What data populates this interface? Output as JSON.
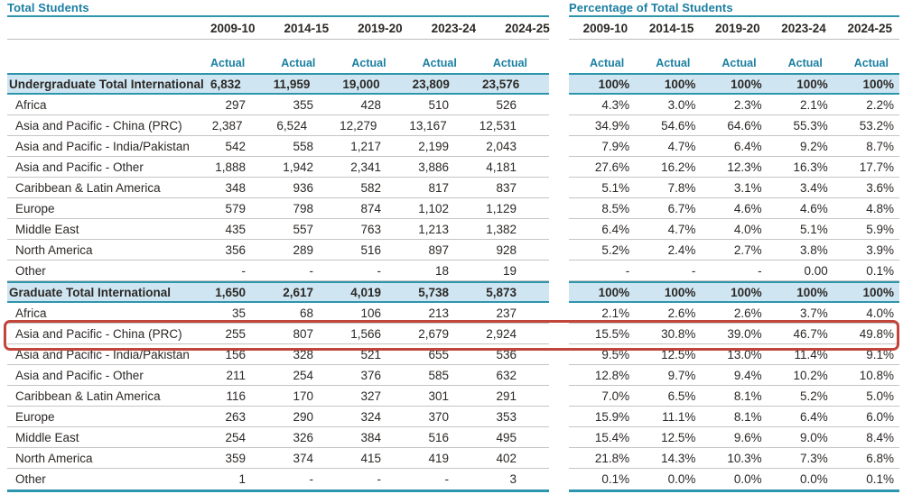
{
  "colors": {
    "accent_teal_text": "#1a7fa2",
    "accent_teal_line": "#2e96ac",
    "band_background": "#cfe6f2",
    "row_separator": "#c4c4c4",
    "highlight_red": "#c2453c"
  },
  "highlight": {
    "section_index": 1,
    "row_index": 1,
    "description": "Graduate Asia and Pacific - China (PRC) row outlined in red across both tables"
  },
  "left_table": {
    "title": "Total Students",
    "years": [
      "2009-10",
      "2014-15",
      "2019-20",
      "2023-24",
      "2024-25"
    ],
    "subheaders": [
      "Actual",
      "Actual",
      "Actual",
      "Actual",
      "Actual"
    ],
    "sections": [
      {
        "total_label": "Undergraduate Total International",
        "total_values": [
          "6,832",
          "11,959",
          "19,000",
          "23,809",
          "23,576"
        ],
        "rows": [
          {
            "label": "Africa",
            "values": [
              "297",
              "355",
              "428",
              "510",
              "526"
            ]
          },
          {
            "label": "Asia and Pacific - China (PRC)",
            "values": [
              "2,387",
              "6,524",
              "12,279",
              "13,167",
              "12,531"
            ]
          },
          {
            "label": "Asia and Pacific - India/Pakistan",
            "values": [
              "542",
              "558",
              "1,217",
              "2,199",
              "2,043"
            ]
          },
          {
            "label": "Asia and Pacific - Other",
            "values": [
              "1,888",
              "1,942",
              "2,341",
              "3,886",
              "4,181"
            ]
          },
          {
            "label": "Caribbean & Latin America",
            "values": [
              "348",
              "936",
              "582",
              "817",
              "837"
            ]
          },
          {
            "label": "Europe",
            "values": [
              "579",
              "798",
              "874",
              "1,102",
              "1,129"
            ]
          },
          {
            "label": "Middle East",
            "values": [
              "435",
              "557",
              "763",
              "1,213",
              "1,382"
            ]
          },
          {
            "label": "North America",
            "values": [
              "356",
              "289",
              "516",
              "897",
              "928"
            ]
          },
          {
            "label": "Other",
            "values": [
              "-",
              "-",
              "-",
              "18",
              "19"
            ]
          }
        ]
      },
      {
        "total_label": "Graduate Total International",
        "total_values": [
          "1,650",
          "2,617",
          "4,019",
          "5,738",
          "5,873"
        ],
        "rows": [
          {
            "label": "Africa",
            "values": [
              "35",
              "68",
              "106",
              "213",
              "237"
            ]
          },
          {
            "label": "Asia and Pacific - China (PRC)",
            "values": [
              "255",
              "807",
              "1,566",
              "2,679",
              "2,924"
            ]
          },
          {
            "label": "Asia and Pacific - India/Pakistan",
            "values": [
              "156",
              "328",
              "521",
              "655",
              "536"
            ]
          },
          {
            "label": "Asia and Pacific - Other",
            "values": [
              "211",
              "254",
              "376",
              "585",
              "632"
            ]
          },
          {
            "label": "Caribbean & Latin America",
            "values": [
              "116",
              "170",
              "327",
              "301",
              "291"
            ]
          },
          {
            "label": "Europe",
            "values": [
              "263",
              "290",
              "324",
              "370",
              "353"
            ]
          },
          {
            "label": "Middle East",
            "values": [
              "254",
              "326",
              "384",
              "516",
              "495"
            ]
          },
          {
            "label": "North America",
            "values": [
              "359",
              "374",
              "415",
              "419",
              "402"
            ]
          },
          {
            "label": "Other",
            "values": [
              "1",
              "-",
              "-",
              "-",
              "3"
            ]
          }
        ]
      }
    ]
  },
  "right_table": {
    "title": "Percentage of Total Students",
    "years": [
      "2009-10",
      "2014-15",
      "2019-20",
      "2023-24",
      "2024-25"
    ],
    "subheaders": [
      "Actual",
      "Actual",
      "Actual",
      "Actual",
      "Actual"
    ],
    "sections": [
      {
        "total_values": [
          "100%",
          "100%",
          "100%",
          "100%",
          "100%"
        ],
        "rows": [
          {
            "values": [
              "4.3%",
              "3.0%",
              "2.3%",
              "2.1%",
              "2.2%"
            ]
          },
          {
            "values": [
              "34.9%",
              "54.6%",
              "64.6%",
              "55.3%",
              "53.2%"
            ]
          },
          {
            "values": [
              "7.9%",
              "4.7%",
              "6.4%",
              "9.2%",
              "8.7%"
            ]
          },
          {
            "values": [
              "27.6%",
              "16.2%",
              "12.3%",
              "16.3%",
              "17.7%"
            ]
          },
          {
            "values": [
              "5.1%",
              "7.8%",
              "3.1%",
              "3.4%",
              "3.6%"
            ]
          },
          {
            "values": [
              "8.5%",
              "6.7%",
              "4.6%",
              "4.6%",
              "4.8%"
            ]
          },
          {
            "values": [
              "6.4%",
              "4.7%",
              "4.0%",
              "5.1%",
              "5.9%"
            ]
          },
          {
            "values": [
              "5.2%",
              "2.4%",
              "2.7%",
              "3.8%",
              "3.9%"
            ]
          },
          {
            "values": [
              "-",
              "-",
              "-",
              "0.00",
              "0.1%"
            ]
          }
        ]
      },
      {
        "total_values": [
          "100%",
          "100%",
          "100%",
          "100%",
          "100%"
        ],
        "rows": [
          {
            "values": [
              "2.1%",
              "2.6%",
              "2.6%",
              "3.7%",
              "4.0%"
            ]
          },
          {
            "values": [
              "15.5%",
              "30.8%",
              "39.0%",
              "46.7%",
              "49.8%"
            ]
          },
          {
            "values": [
              "9.5%",
              "12.5%",
              "13.0%",
              "11.4%",
              "9.1%"
            ]
          },
          {
            "values": [
              "12.8%",
              "9.7%",
              "9.4%",
              "10.2%",
              "10.8%"
            ]
          },
          {
            "values": [
              "7.0%",
              "6.5%",
              "8.1%",
              "5.2%",
              "5.0%"
            ]
          },
          {
            "values": [
              "15.9%",
              "11.1%",
              "8.1%",
              "6.4%",
              "6.0%"
            ]
          },
          {
            "values": [
              "15.4%",
              "12.5%",
              "9.6%",
              "9.0%",
              "8.4%"
            ]
          },
          {
            "values": [
              "21.8%",
              "14.3%",
              "10.3%",
              "7.3%",
              "6.8%"
            ]
          },
          {
            "values": [
              "0.1%",
              "0.0%",
              "0.0%",
              "0.0%",
              "0.1%"
            ]
          }
        ]
      }
    ]
  }
}
